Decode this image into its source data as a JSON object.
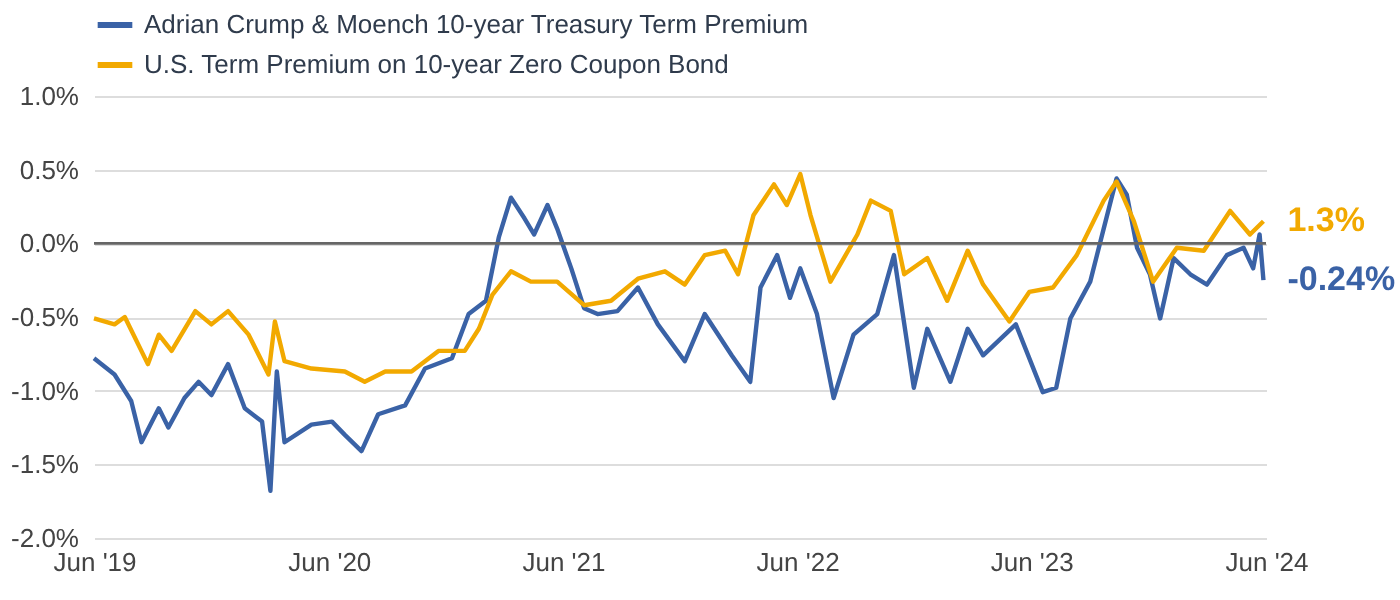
{
  "chart_data": {
    "type": "line",
    "xlim": [
      "2019-06-01",
      "2024-06-01"
    ],
    "xticks": [
      {
        "value": "2019-06-01",
        "label": "Jun '19"
      },
      {
        "value": "2020-06-01",
        "label": "Jun '20"
      },
      {
        "value": "2021-06-01",
        "label": "Jun '21"
      },
      {
        "value": "2022-06-01",
        "label": "Jun '22"
      },
      {
        "value": "2023-06-01",
        "label": "Jun '23"
      },
      {
        "value": "2024-06-01",
        "label": "Jun '24"
      }
    ],
    "ylim": [
      -2,
      1
    ],
    "yticks": [
      {
        "value": -2,
        "label": "-2.0%"
      },
      {
        "value": -1.5,
        "label": "-1.5%"
      },
      {
        "value": -1,
        "label": "-1.0%"
      },
      {
        "value": -0.5,
        "label": "-0.5%"
      },
      {
        "value": 0,
        "label": "0.0%"
      },
      {
        "value": 0.5,
        "label": "0.5%"
      },
      {
        "value": 1,
        "label": "1.0%"
      }
    ],
    "grid": "y",
    "legend": "top",
    "line_style": "solid",
    "marker": "none",
    "ref_lines": [
      {
        "axis": "y",
        "value": 0,
        "label": null,
        "color": "#666666"
      }
    ],
    "annotations": [
      "-0.24%",
      "1.3%"
    ],
    "series": [
      {
        "name": "Adrian Crump & Moench 10-year Treasury Term Premium",
        "color": "#3a62a6",
        "x": [
          "2019-06-01",
          "2019-07-03",
          "2019-07-29",
          "2019-08-14",
          "2019-09-10",
          "2019-09-25",
          "2019-10-20",
          "2019-11-11",
          "2019-12-01",
          "2019-12-27",
          "2020-01-22",
          "2020-02-18",
          "2020-03-02",
          "2020-03-12",
          "2020-03-24",
          "2020-05-05",
          "2020-06-06",
          "2020-06-26",
          "2020-07-22",
          "2020-08-17",
          "2020-09-28",
          "2020-10-29",
          "2020-12-10",
          "2021-01-05",
          "2021-02-01",
          "2021-02-21",
          "2021-03-12",
          "2021-04-02",
          "2021-04-17",
          "2021-05-08",
          "2021-05-23",
          "2021-06-14",
          "2021-07-04",
          "2021-07-25",
          "2021-08-25",
          "2021-09-26",
          "2021-10-27",
          "2021-12-08",
          "2022-01-08",
          "2022-01-23",
          "2022-02-19",
          "2022-03-20",
          "2022-04-05",
          "2022-05-01",
          "2022-05-21",
          "2022-06-06",
          "2022-07-02",
          "2022-07-28",
          "2022-08-28",
          "2022-10-04",
          "2022-10-30",
          "2022-11-30",
          "2022-12-21",
          "2023-01-26",
          "2023-02-22",
          "2023-03-18",
          "2023-05-08",
          "2023-06-19",
          "2023-07-10",
          "2023-08-01",
          "2023-09-01",
          "2023-09-22",
          "2023-10-12",
          "2023-10-28",
          "2023-11-13",
          "2023-12-03",
          "2023-12-19",
          "2024-01-09",
          "2024-02-04",
          "2024-03-01",
          "2024-04-01",
          "2024-04-27",
          "2024-05-12",
          "2024-05-22",
          "2024-05-28"
        ],
        "values": [
          -0.78,
          -0.89,
          -1.07,
          -1.35,
          -1.12,
          -1.25,
          -1.05,
          -0.94,
          -1.03,
          -0.82,
          -1.12,
          -1.21,
          -1.68,
          -0.87,
          -1.35,
          -1.23,
          -1.21,
          -1.3,
          -1.41,
          -1.16,
          -1.1,
          -0.85,
          -0.78,
          -0.48,
          -0.39,
          0.04,
          0.31,
          0.17,
          0.06,
          0.26,
          0.1,
          -0.17,
          -0.44,
          -0.48,
          -0.46,
          -0.3,
          -0.55,
          -0.8,
          -0.48,
          -0.58,
          -0.76,
          -0.94,
          -0.3,
          -0.08,
          -0.37,
          -0.17,
          -0.48,
          -1.05,
          -0.62,
          -0.48,
          -0.08,
          -0.98,
          -0.58,
          -0.94,
          -0.58,
          -0.76,
          -0.55,
          -1.01,
          -0.98,
          -0.51,
          -0.26,
          0.1,
          0.44,
          0.33,
          -0.03,
          -0.21,
          -0.51,
          -0.1,
          -0.21,
          -0.28,
          -0.08,
          -0.03,
          -0.17,
          0.06,
          -0.25
        ]
      },
      {
        "name": "U.S. Term Premium on 10-year Zero Coupon Bond",
        "color": "#f2a900",
        "x": [
          "2019-06-01",
          "2019-07-03",
          "2019-07-19",
          "2019-08-24",
          "2019-09-10",
          "2019-09-30",
          "2019-11-06",
          "2019-12-01",
          "2019-12-27",
          "2020-01-28",
          "2020-02-28",
          "2020-03-09",
          "2020-03-24",
          "2020-05-05",
          "2020-06-26",
          "2020-07-27",
          "2020-08-28",
          "2020-10-08",
          "2020-11-19",
          "2020-12-30",
          "2021-01-21",
          "2021-02-11",
          "2021-03-12",
          "2021-04-12",
          "2021-05-23",
          "2021-07-04",
          "2021-08-15",
          "2021-09-26",
          "2021-11-07",
          "2021-12-08",
          "2022-01-08",
          "2022-02-09",
          "2022-03-01",
          "2022-03-25",
          "2022-04-26",
          "2022-05-16",
          "2022-06-06",
          "2022-06-22",
          "2022-07-23",
          "2022-09-03",
          "2022-09-24",
          "2022-10-25",
          "2022-11-15",
          "2022-12-21",
          "2023-01-21",
          "2023-02-22",
          "2023-03-18",
          "2023-04-28",
          "2023-05-29",
          "2023-07-05",
          "2023-08-11",
          "2023-09-22",
          "2023-10-12",
          "2023-11-08",
          "2023-12-08",
          "2024-01-14",
          "2024-02-25",
          "2024-04-06",
          "2024-05-07",
          "2024-05-28"
        ],
        "values": [
          -0.51,
          -0.55,
          -0.5,
          -0.82,
          -0.62,
          -0.73,
          -0.46,
          -0.55,
          -0.46,
          -0.62,
          -0.89,
          -0.53,
          -0.8,
          -0.85,
          -0.87,
          -0.94,
          -0.87,
          -0.87,
          -0.73,
          -0.73,
          -0.58,
          -0.35,
          -0.19,
          -0.26,
          -0.26,
          -0.42,
          -0.39,
          -0.24,
          -0.19,
          -0.28,
          -0.08,
          -0.05,
          -0.21,
          0.19,
          0.4,
          0.26,
          0.47,
          0.19,
          -0.26,
          0.06,
          0.29,
          0.22,
          -0.21,
          -0.1,
          -0.39,
          -0.05,
          -0.28,
          -0.53,
          -0.33,
          -0.3,
          -0.08,
          0.29,
          0.42,
          0.15,
          -0.26,
          -0.03,
          -0.05,
          0.22,
          0.06,
          0.15
        ]
      }
    ]
  }
}
